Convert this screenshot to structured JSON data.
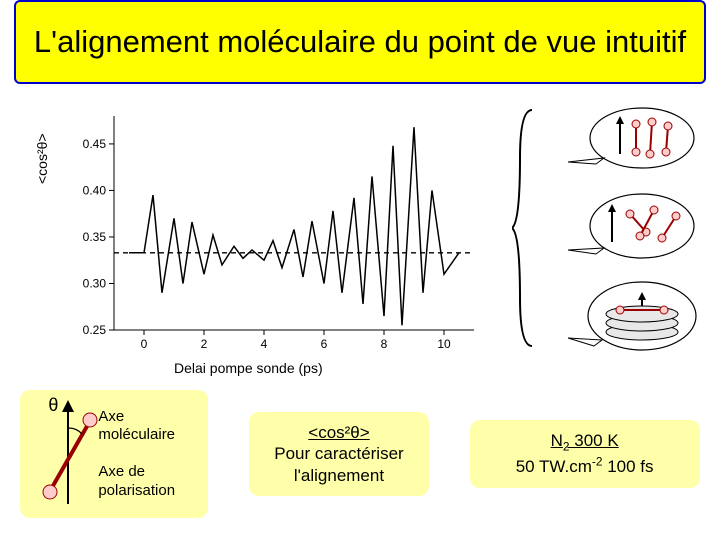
{
  "title": "L'alignement moléculaire du point de vue intuitif",
  "chart": {
    "type": "line",
    "xlabel": "Delai pompe sonde (ps)",
    "ylabel": "<cos²θ>",
    "xlim": [
      -1,
      11
    ],
    "ylim": [
      0.25,
      0.48
    ],
    "xticks": [
      0,
      2,
      4,
      6,
      8,
      10
    ],
    "yticks": [
      0.25,
      0.3,
      0.35,
      0.4,
      0.45
    ],
    "baseline": 0.333,
    "tick_fontsize": 12,
    "label_fontsize": 14,
    "line_color": "#000000",
    "line_width": 1.5,
    "baseline_dash": "5,4",
    "background_color": "#ffffff",
    "x": [
      -0.5,
      0,
      0.3,
      0.6,
      1.0,
      1.3,
      1.6,
      2.0,
      2.3,
      2.6,
      3.0,
      3.3,
      3.6,
      4.0,
      4.3,
      4.6,
      5.0,
      5.3,
      5.6,
      6.0,
      6.3,
      6.6,
      7.0,
      7.3,
      7.6,
      8.0,
      8.3,
      8.6,
      9.0,
      9.3,
      9.6,
      10.0,
      10.5
    ],
    "y": [
      0.333,
      0.333,
      0.395,
      0.29,
      0.37,
      0.3,
      0.366,
      0.31,
      0.352,
      0.32,
      0.34,
      0.327,
      0.336,
      0.325,
      0.346,
      0.317,
      0.358,
      0.307,
      0.367,
      0.3,
      0.378,
      0.29,
      0.392,
      0.278,
      0.415,
      0.265,
      0.448,
      0.255,
      0.468,
      0.29,
      0.4,
      0.31,
      0.333
    ]
  },
  "theta": {
    "symbol": "θ",
    "axe_mol": "Axe moléculaire",
    "axe_pol": "Axe de polarisation"
  },
  "caracteriser": {
    "line1_html": "<cos²θ>",
    "line2": "Pour caractériser",
    "line3": "l'alignement"
  },
  "params": {
    "line1_html": "N₂ 300 K",
    "line2_html": "50 TW.cm⁻² 100 fs"
  },
  "callouts": {
    "brace_color": "#000000",
    "bubble_fill": "#ffffff",
    "bubble_stroke": "#000000",
    "atom_fill": "#ffcccc",
    "atom_stroke": "#990000",
    "arrow_color": "#000000",
    "disk_fill": "#e8e8e8",
    "disk_stroke": "#000000"
  },
  "colors": {
    "title_bg": "#ffff00",
    "title_border": "#0000cc",
    "box_bg": "#ffffaa"
  }
}
